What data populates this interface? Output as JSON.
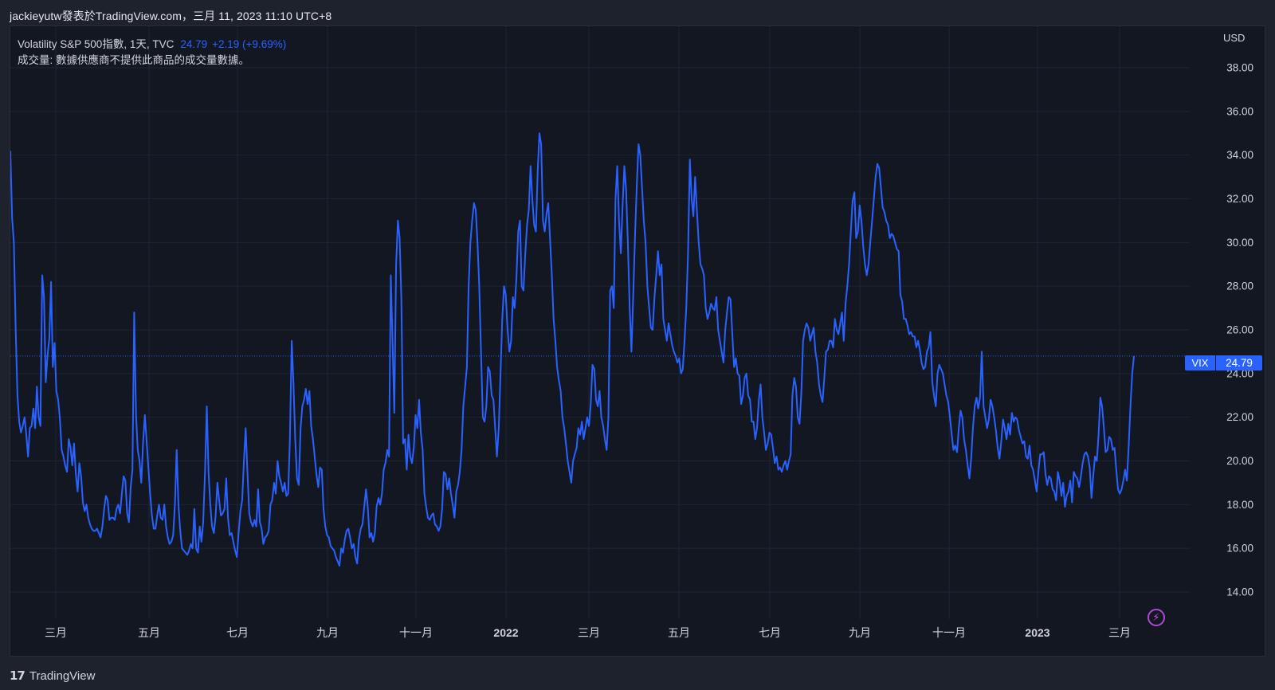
{
  "header": {
    "publish_line": "jackieyutw發表於TradingView.com，三月 11, 2023 11:10 UTC+8"
  },
  "legend": {
    "symbol": "Volatility S&P 500指數, 1天, TVC",
    "last": "24.79",
    "change": "+2.19 (+9.69%)",
    "volume_note": "成交量: 數據供應商不提供此商品的成交量數據。"
  },
  "axis": {
    "currency": "USD"
  },
  "last_price_label": {
    "ticker": "VIX",
    "value": "24.79"
  },
  "footer": {
    "brand": "TradingView"
  },
  "colors": {
    "line": "#2962ff",
    "background": "#131722",
    "grid": "#1f2433",
    "text": "#d1d4dc"
  },
  "icons": {
    "bolt": "lightning-bolt-icon",
    "logo": "tradingview-logo-icon"
  },
  "chart_data": {
    "type": "line",
    "x_ticks": [
      "三月",
      "五月",
      "七月",
      "九月",
      "十一月",
      "2022",
      "三月",
      "五月",
      "七月",
      "九月",
      "十一月",
      "2023",
      "三月"
    ],
    "y_ticks": [
      "38.00",
      "36.00",
      "34.00",
      "32.00",
      "30.00",
      "28.00",
      "26.00",
      "24.00",
      "22.00",
      "20.00",
      "18.00",
      "16.00",
      "14.00"
    ],
    "ylim": [
      13.0,
      39.0
    ],
    "grid": true,
    "series": [
      {
        "name": "VIX",
        "values": [
          34.2,
          31.1,
          30.0,
          26.0,
          23.0,
          21.8,
          21.3,
          21.6,
          22.0,
          21.2,
          20.2,
          21.5,
          21.6,
          22.4,
          21.5,
          23.4,
          22.0,
          21.6,
          28.5,
          27.5,
          23.6,
          24.8,
          25.6,
          28.2,
          24.3,
          25.4,
          23.2,
          22.8,
          21.9,
          20.5,
          20.2,
          19.8,
          19.5,
          21.0,
          20.6,
          19.8,
          20.8,
          19.4,
          18.6,
          19.9,
          19.3,
          18.1,
          17.7,
          18.0,
          17.4,
          17.1,
          16.9,
          16.8,
          16.8,
          16.9,
          16.7,
          16.5,
          17.0,
          17.8,
          18.4,
          18.2,
          17.3,
          17.4,
          17.4,
          17.3,
          17.8,
          18.0,
          17.6,
          18.5,
          19.3,
          19.1,
          17.6,
          17.2,
          18.8,
          19.6,
          26.8,
          22.1,
          20.5,
          20.0,
          19.0,
          20.8,
          22.1,
          20.9,
          19.7,
          18.5,
          17.5,
          16.9,
          16.9,
          17.5,
          18.0,
          17.4,
          17.3,
          18.0,
          17.0,
          16.5,
          16.2,
          16.3,
          16.6,
          18.0,
          20.5,
          18.0,
          16.8,
          16.0,
          15.9,
          15.8,
          15.7,
          15.9,
          16.2,
          16.0,
          17.8,
          16.0,
          15.8,
          17.0,
          16.3,
          17.2,
          19.5,
          22.5,
          19.5,
          18.0,
          17.0,
          16.7,
          17.5,
          19.0,
          18.2,
          17.5,
          17.6,
          17.8,
          19.2,
          17.4,
          16.6,
          16.7,
          16.3,
          15.9,
          15.6,
          16.7,
          17.7,
          18.2,
          20.0,
          21.5,
          19.5,
          17.6,
          17.2,
          17.0,
          17.3,
          17.0,
          18.7,
          17.2,
          16.9,
          16.2,
          16.5,
          16.6,
          16.8,
          18.0,
          18.2,
          19.0,
          18.5,
          20.0,
          19.3,
          19.0,
          18.6,
          19.0,
          18.4,
          18.5,
          21.0,
          25.5,
          23.5,
          21.0,
          19.2,
          18.9,
          21.5,
          22.5,
          22.8,
          23.3,
          22.6,
          23.2,
          21.6,
          21.0,
          20.2,
          19.4,
          18.8,
          19.7,
          19.6,
          17.8,
          17.0,
          16.6,
          16.5,
          16.1,
          16.0,
          15.9,
          15.6,
          15.4,
          15.2,
          16.0,
          15.8,
          16.4,
          16.8,
          16.9,
          16.5,
          16.0,
          16.2,
          15.6,
          15.3,
          16.4,
          16.9,
          17.1,
          17.9,
          18.7,
          17.9,
          16.5,
          16.7,
          16.3,
          16.7,
          17.9,
          18.3,
          18.0,
          18.5,
          19.6,
          19.9,
          20.5,
          20.2,
          28.5,
          25.5,
          22.2,
          29.0,
          31.0,
          30.2,
          27.4,
          20.8,
          21.0,
          19.6,
          21.2,
          20.2,
          19.9,
          20.6,
          22.1,
          21.5,
          22.8,
          21.3,
          20.5,
          18.5,
          17.9,
          17.4,
          17.3,
          17.5,
          17.6,
          17.1,
          17.0,
          16.8,
          17.0,
          17.8,
          19.5,
          19.4,
          18.7,
          19.2,
          18.5,
          18.0,
          17.4,
          18.6,
          18.9,
          19.5,
          20.5,
          22.5,
          23.4,
          24.3,
          28.0,
          30.0,
          31.0,
          31.8,
          31.5,
          30.0,
          28.0,
          25.0,
          22.0,
          21.8,
          22.5,
          24.3,
          24.1,
          23.0,
          22.8,
          21.5,
          20.2,
          21.5,
          24.0,
          26.5,
          28.0,
          27.6,
          26.0,
          25.0,
          25.5,
          27.5,
          27.0,
          28.4,
          30.5,
          31.0,
          28.0,
          27.8,
          29.5,
          30.8,
          31.5,
          33.5,
          32.0,
          30.8,
          30.5,
          33.2,
          35.0,
          34.5,
          31.0,
          30.5,
          31.3,
          31.8,
          30.2,
          28.5,
          26.5,
          25.5,
          24.3,
          23.7,
          23.2,
          22.0,
          21.5,
          20.8,
          20.0,
          19.5,
          19.0,
          20.0,
          20.3,
          20.6,
          21.5,
          21.2,
          21.8,
          21.0,
          21.5,
          22.0,
          21.6,
          22.6,
          24.4,
          24.2,
          22.8,
          22.5,
          23.2,
          22.0,
          21.6,
          21.0,
          20.5,
          22.0,
          27.8,
          28.0,
          27.0,
          32.0,
          33.5,
          31.0,
          29.5,
          31.7,
          33.5,
          32.4,
          30.0,
          27.0,
          25.0,
          27.5,
          30.2,
          32.5,
          34.5,
          34.0,
          32.5,
          31.0,
          30.0,
          28.0,
          27.0,
          26.1,
          26.0,
          27.5,
          28.5,
          29.6,
          28.5,
          29.0,
          26.5,
          26.0,
          25.5,
          26.3,
          25.8,
          25.3,
          25.0,
          24.8,
          24.5,
          24.7,
          24.0,
          24.2,
          25.5,
          27.0,
          29.5,
          33.8,
          32.0,
          31.2,
          33.0,
          31.5,
          30.0,
          29.0,
          28.8,
          28.5,
          27.0,
          26.5,
          26.8,
          27.2,
          27.0,
          26.9,
          27.5,
          26.0,
          25.5,
          25.0,
          24.5,
          26.0,
          26.8,
          27.5,
          27.4,
          25.8,
          24.3,
          24.7,
          24.0,
          23.9,
          22.6,
          23.0,
          23.8,
          24.0,
          23.0,
          22.8,
          21.8,
          21.8,
          21.0,
          21.5,
          22.8,
          23.5,
          22.0,
          21.3,
          20.5,
          20.8,
          21.3,
          21.2,
          20.6,
          19.9,
          20.2,
          19.6,
          19.7,
          19.5,
          19.8,
          20.0,
          19.6,
          20.0,
          20.3,
          23.0,
          23.8,
          23.4,
          22.0,
          21.7,
          23.1,
          25.5,
          26.0,
          26.3,
          26.1,
          25.5,
          25.8,
          26.1,
          25.0,
          24.5,
          23.5,
          23.0,
          22.7,
          23.8,
          25.0,
          25.1,
          25.5,
          25.5,
          25.2,
          26.5,
          26.0,
          25.8,
          26.3,
          26.8,
          25.5,
          27.2,
          28.0,
          29.0,
          30.5,
          31.9,
          32.3,
          30.2,
          30.5,
          31.7,
          31.0,
          29.8,
          29.0,
          28.5,
          29.0,
          30.0,
          31.0,
          32.0,
          33.0,
          33.6,
          33.4,
          32.5,
          31.6,
          31.4,
          31.0,
          30.8,
          30.2,
          30.4,
          30.3,
          30.0,
          29.7,
          29.6,
          27.6,
          27.3,
          26.5,
          26.5,
          26.2,
          25.8,
          25.9,
          25.7,
          25.7,
          25.2,
          25.5,
          25.1,
          24.5,
          24.2,
          24.3,
          25.0,
          25.2,
          25.9,
          23.6,
          23.0,
          22.5,
          24.0,
          24.4,
          24.2,
          24.0,
          23.5,
          23.0,
          22.7,
          22.0,
          21.2,
          20.5,
          20.7,
          20.4,
          21.5,
          22.3,
          22.0,
          21.0,
          20.5,
          19.8,
          19.2,
          20.1,
          21.5,
          22.5,
          22.9,
          22.4,
          22.9,
          25.0,
          22.5,
          22.0,
          21.5,
          21.9,
          22.8,
          22.5,
          22.0,
          21.4,
          20.6,
          20.1,
          20.9,
          21.9,
          21.5,
          21.0,
          21.7,
          21.2,
          22.2,
          21.8,
          22.0,
          21.9,
          21.4,
          21.1,
          20.8,
          20.9,
          20.2,
          20.1,
          20.7,
          19.8,
          19.6,
          19.1,
          18.6,
          19.5,
          20.3,
          20.3,
          20.4,
          19.4,
          18.9,
          19.3,
          19.2,
          18.7,
          18.6,
          18.2,
          19.5,
          19.1,
          18.4,
          19.0,
          17.9,
          18.4,
          18.6,
          19.1,
          18.1,
          19.5,
          19.3,
          19.2,
          18.8,
          19.3,
          19.9,
          20.3,
          20.4,
          20.2,
          19.7,
          18.3,
          19.3,
          20.2,
          20.0,
          21.2,
          22.9,
          22.5,
          21.5,
          20.4,
          20.5,
          21.1,
          21.0,
          20.5,
          20.6,
          19.6,
          18.7,
          18.5,
          18.7,
          19.1,
          19.6,
          19.1,
          20.6,
          22.5,
          24.0,
          24.8
        ]
      }
    ]
  }
}
